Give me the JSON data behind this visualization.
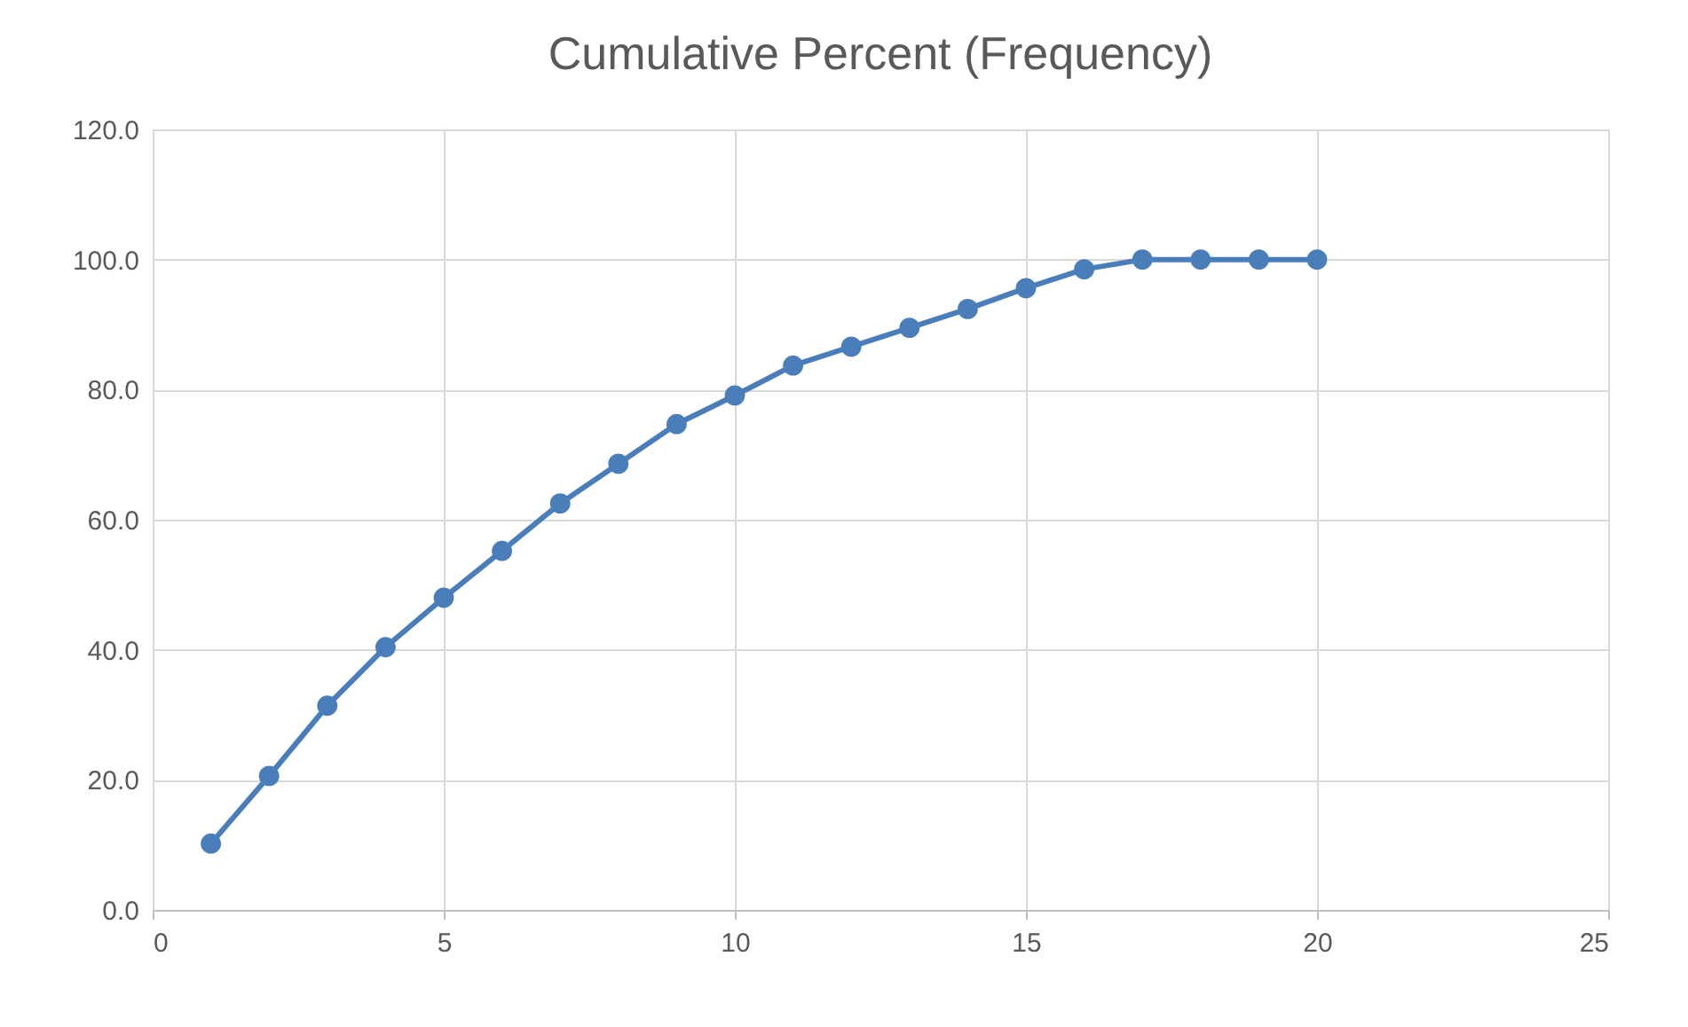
{
  "chart_data": {
    "type": "line",
    "title": "Cumulative Percent (Frequency)",
    "x": [
      1,
      2,
      3,
      4,
      5,
      6,
      7,
      8,
      9,
      10,
      11,
      12,
      13,
      14,
      15,
      16,
      17,
      18,
      19,
      20
    ],
    "series": [
      {
        "color": "#4a7ebb",
        "values": [
          10.2,
          20.6,
          31.4,
          40.4,
          48.0,
          55.2,
          62.5,
          68.6,
          74.7,
          79.1,
          83.7,
          86.6,
          89.5,
          92.4,
          95.6,
          98.5,
          100,
          100,
          100,
          100
        ]
      }
    ],
    "xlim": [
      0,
      25
    ],
    "xticks": [
      0,
      5,
      10,
      15,
      20,
      25
    ],
    "ylim": [
      0,
      120
    ],
    "yticks": [
      {
        "value": 0,
        "label": "0.0"
      },
      {
        "value": 20,
        "label": "20.0"
      },
      {
        "value": 40,
        "label": "40.0"
      },
      {
        "value": 60,
        "label": "60.0"
      },
      {
        "value": 80,
        "label": "80.0"
      },
      {
        "value": 100,
        "label": "100.0"
      },
      {
        "value": 120,
        "label": "120.0"
      }
    ],
    "grid": true,
    "marker": "circle",
    "line_style": "solid",
    "legend": false
  }
}
